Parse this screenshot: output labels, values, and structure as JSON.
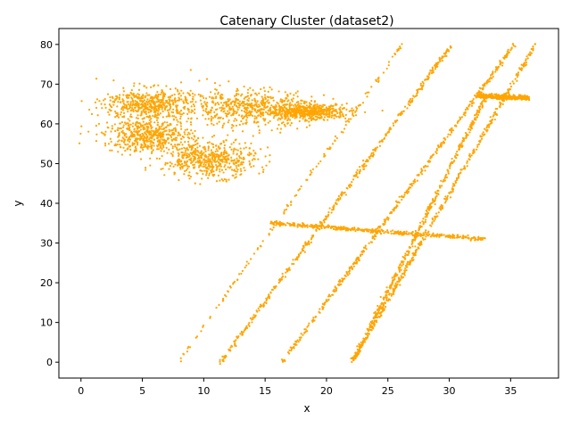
{
  "chart_data": {
    "type": "scatter",
    "title": "Catenary Cluster (dataset2)",
    "xlabel": "x",
    "ylabel": "y",
    "xlim": [
      -1.8,
      38.9
    ],
    "ylim": [
      -4,
      84
    ],
    "xticks": [
      0,
      5,
      10,
      15,
      20,
      25,
      30,
      35
    ],
    "yticks": [
      0,
      10,
      20,
      30,
      40,
      50,
      60,
      70,
      80
    ],
    "grid": false,
    "legend": "none",
    "marker_color": "#ffa500",
    "series": [
      {
        "kind": "line",
        "note_points": [
          [
            7.9,
            0
          ],
          [
            26.2,
            80
          ]
        ],
        "description": "sparse diagonal line"
      },
      {
        "kind": "line",
        "note_points": [
          [
            11.4,
            0
          ],
          [
            30.2,
            80
          ]
        ]
      },
      {
        "kind": "line",
        "note_points": [
          [
            16.4,
            0
          ],
          [
            35.3,
            80
          ]
        ]
      },
      {
        "kind": "line",
        "note_points": [
          [
            22.1,
            0
          ],
          [
            37.0,
            80
          ]
        ]
      },
      {
        "kind": "line",
        "note_points": [
          [
            22.1,
            0
          ],
          [
            33.0,
            67
          ]
        ]
      },
      {
        "kind": "line",
        "note_points": [
          [
            15.5,
            35
          ],
          [
            33.0,
            31
          ]
        ]
      },
      {
        "kind": "line",
        "note_points": [
          [
            32.3,
            67
          ],
          [
            36.5,
            66.5
          ]
        ]
      },
      {
        "kind": "cluster",
        "center": [
          10.5,
          51
        ],
        "spread": [
          1.9,
          2.2
        ]
      },
      {
        "kind": "cluster",
        "center": [
          13.5,
          64
        ],
        "spread": [
          2.6,
          2.4
        ]
      },
      {
        "kind": "cluster",
        "center": [
          18.5,
          63
        ],
        "spread": [
          1.7,
          1.0
        ]
      },
      {
        "kind": "cluster",
        "center": [
          5.5,
          57
        ],
        "spread": [
          1.8,
          2.0
        ]
      },
      {
        "kind": "cluster",
        "center": [
          5.5,
          65
        ],
        "spread": [
          1.8,
          2.0
        ]
      }
    ]
  }
}
